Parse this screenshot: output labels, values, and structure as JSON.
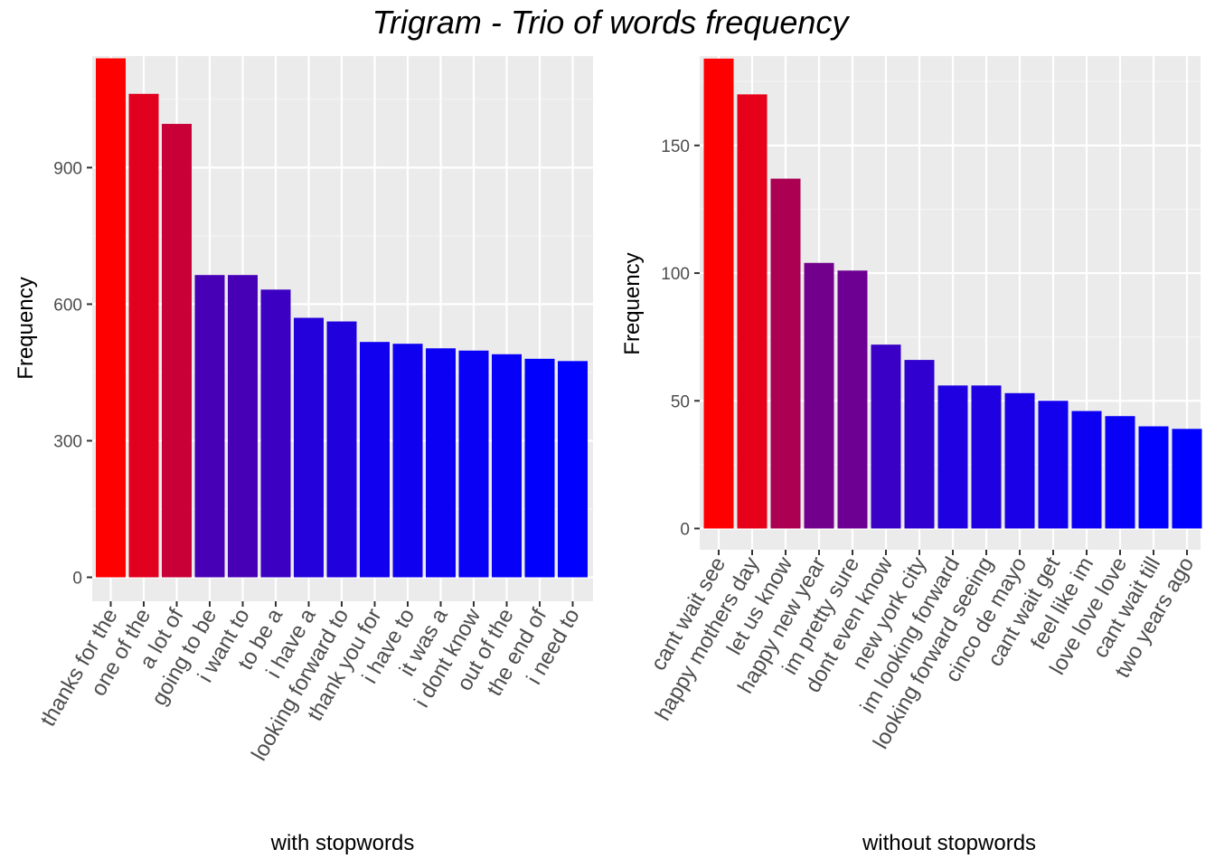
{
  "title": "Trigram - Trio of words frequency",
  "colors": {
    "panel_bg": "#ebebeb",
    "grid_major": "#ffffff",
    "grid_minor": "#f5f5f5",
    "low": "#0000ff",
    "high": "#ff0000",
    "tick_text": "#4d4d4d"
  },
  "chart_data": [
    {
      "type": "bar",
      "xlabel": "with stopwords",
      "ylabel": "Frequency",
      "ylim": [
        0,
        1145
      ],
      "yticks": [
        0,
        300,
        600,
        900
      ],
      "categories": [
        "thanks for the",
        "one of the",
        "a lot of",
        "going to be",
        "i want to",
        "to be a",
        "i have a",
        "looking forward to",
        "thank you for",
        "i have to",
        "it was a",
        "i dont know",
        "out of the",
        "the end of",
        "i need to"
      ],
      "values": [
        1140,
        1062,
        996,
        664,
        664,
        632,
        570,
        562,
        517,
        513,
        503,
        498,
        490,
        480,
        475
      ]
    },
    {
      "type": "bar",
      "xlabel": "without stopwords",
      "ylabel": "Frequency",
      "ylim": [
        0,
        185
      ],
      "yticks": [
        0,
        50,
        100,
        150
      ],
      "categories": [
        "cant wait see",
        "happy mothers day",
        "let us know",
        "happy new year",
        "im pretty sure",
        "dont even know",
        "new york city",
        "im looking forward",
        "looking forward seeing",
        "cinco de mayo",
        "cant wait get",
        "feel like im",
        "love love love",
        "cant wait till",
        "two years ago"
      ],
      "values": [
        184,
        170,
        137,
        104,
        101,
        72,
        66,
        56,
        56,
        53,
        50,
        46,
        44,
        40,
        39
      ]
    }
  ]
}
